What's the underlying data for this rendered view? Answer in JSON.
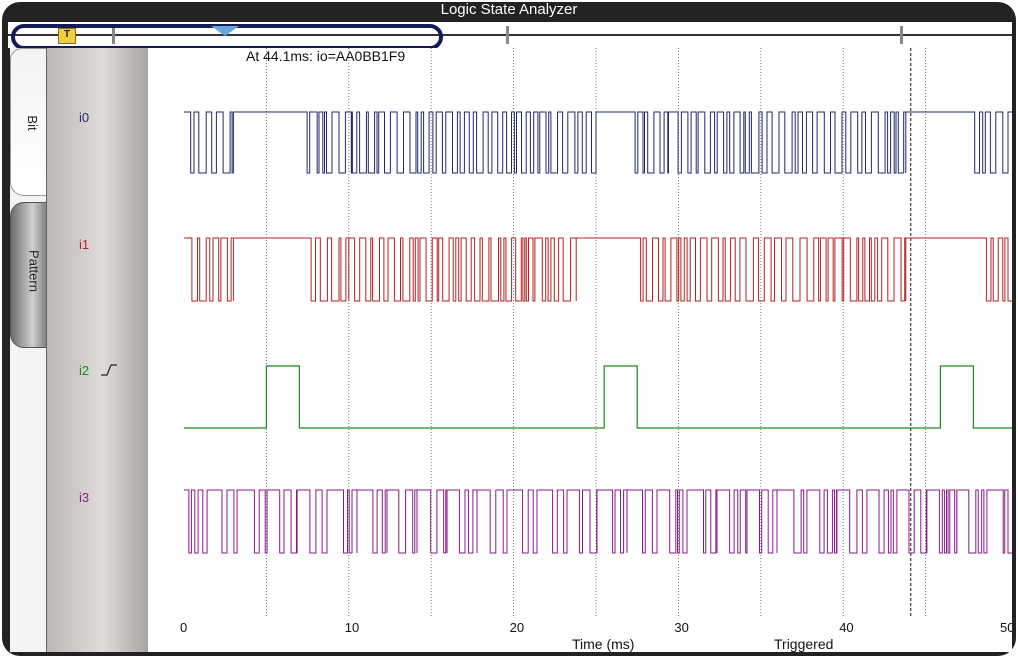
{
  "window": {
    "title": "Logic State Analyzer"
  },
  "overview": {
    "trigger_label": "T"
  },
  "tabs": [
    {
      "label": "Bit",
      "active": true
    },
    {
      "label": "Pattern",
      "active": false
    }
  ],
  "channels": [
    {
      "name": "i0",
      "color": "#1f2a6b"
    },
    {
      "name": "i1",
      "color": "#b22222"
    },
    {
      "name": "i2",
      "color": "#1a8a1a",
      "trigger_edge": "rising-edge-icon"
    },
    {
      "name": "i3",
      "color": "#8a1a8a"
    }
  ],
  "readout": "At 44.1ms:  io=AA0BB1F9",
  "axis": {
    "label": "Time (ms)",
    "ticks": [
      "0",
      "10",
      "20",
      "30",
      "40",
      "50"
    ],
    "range": [
      0,
      50
    ],
    "cursor_ms": 44.1
  },
  "status": "Triggered"
}
